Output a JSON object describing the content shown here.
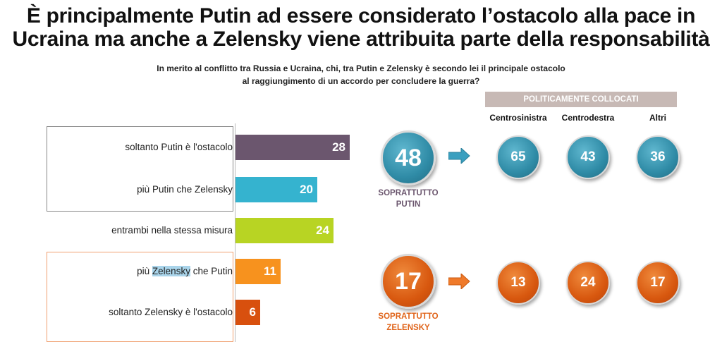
{
  "title_line1": "È principalmente Putin ad essere considerato l’ostacolo alla pace in",
  "title_line2": "Ucraina ma anche a Zelensky viene attribuita parte della responsabilità",
  "subtitle_line1": "In merito al conflitto tra Russia e Ucraina, chi, tra Putin e Zelensky è secondo lei il principale ostacolo",
  "subtitle_line2": "al raggiungimento di un accordo per concludere la guerra?",
  "rows": [
    {
      "label_pre": "soltanto Putin è l'ostacolo",
      "label_hl": "",
      "label_post": "",
      "value": "28"
    },
    {
      "label_pre": "più Putin che Zelensky",
      "label_hl": "",
      "label_post": "",
      "value": "20"
    },
    {
      "label_pre": "entrambi nella stessa misura",
      "label_hl": "",
      "label_post": "",
      "value": "24"
    },
    {
      "label_pre": "più ",
      "label_hl": "Zelensky",
      "label_post": " che Putin",
      "value": "11"
    },
    {
      "label_pre": "soltanto Zelensky è l'ostacolo",
      "label_hl": "",
      "label_post": "",
      "value": "6"
    }
  ],
  "summary_putin": {
    "value": "48",
    "label_line1": "SOPRATTUTTO",
    "label_line2": "PUTIN"
  },
  "summary_zelensky": {
    "value": "17",
    "label_line1": "SOPRATTUTTO",
    "label_line2": "ZELENSKY"
  },
  "political_header": "POLITICAMENTE COLLOCATI",
  "political_columns": [
    "Centrosinistra",
    "Centrodestra",
    "Altri"
  ],
  "political_putin": [
    "65",
    "43",
    "36"
  ],
  "political_zelensky": [
    "13",
    "24",
    "17"
  ],
  "colors": {
    "putin_dark": "#6b566e",
    "putin_light": "#35b3cf",
    "both": "#b8d423",
    "zel_light": "#f7921e",
    "zel_dark": "#d8500e",
    "label_putin": "#6b566e",
    "label_zel": "#e0641a"
  },
  "chart_data": {
    "type": "bar",
    "categories": [
      "soltanto Putin è l'ostacolo",
      "più Putin che Zelensky",
      "entrambi nella stessa misura",
      "più Zelensky che Putin",
      "soltanto Zelensky è l'ostacolo"
    ],
    "values": [
      28,
      20,
      24,
      11,
      6
    ],
    "title": "È principalmente Putin ad essere considerato l’ostacolo alla pace in Ucraina ma anche a Zelensky viene attribuita parte della responsabilità",
    "orientation": "horizontal",
    "grid": false
  }
}
